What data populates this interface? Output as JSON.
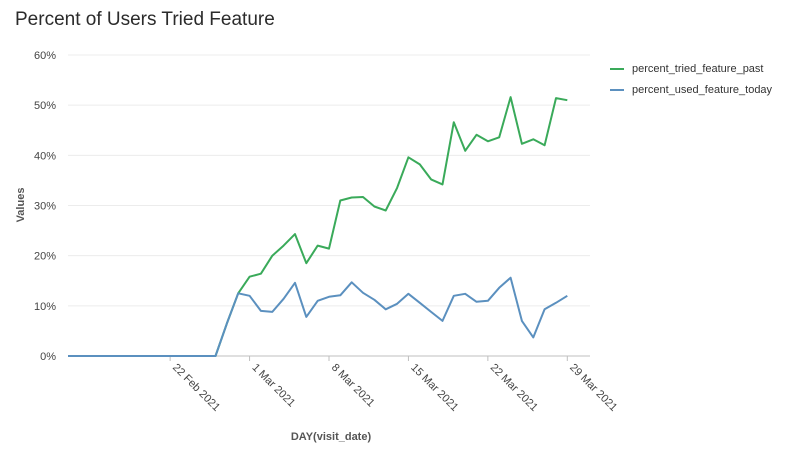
{
  "chart_data": {
    "type": "line",
    "title": "Percent of Users Tried Feature",
    "xlabel": "DAY(visit_date)",
    "ylabel": "Values",
    "ylim": [
      0,
      60
    ],
    "y_ticks": [
      "0%",
      "10%",
      "20%",
      "30%",
      "40%",
      "50%",
      "60%"
    ],
    "y_tick_values": [
      0,
      10,
      20,
      30,
      40,
      50,
      60
    ],
    "x_start_date": "2021-02-13",
    "x_end_date": "2021-03-31",
    "x_ticks": [
      {
        "label": "22 Feb 2021",
        "date": "2021-02-22"
      },
      {
        "label": "1 Mar 2021",
        "date": "2021-03-01"
      },
      {
        "label": "8 Mar 2021",
        "date": "2021-03-08"
      },
      {
        "label": "15 Mar 2021",
        "date": "2021-03-15"
      },
      {
        "label": "22 Mar 2021",
        "date": "2021-03-22"
      },
      {
        "label": "29 Mar 2021",
        "date": "2021-03-29"
      }
    ],
    "grid": true,
    "legend_position": "right",
    "series": [
      {
        "name": "percent_tried_feature_past",
        "color": "#3aaa5a",
        "points": [
          [
            "2021-02-13",
            0
          ],
          [
            "2021-02-14",
            0
          ],
          [
            "2021-02-15",
            0
          ],
          [
            "2021-02-16",
            0
          ],
          [
            "2021-02-17",
            0
          ],
          [
            "2021-02-18",
            0
          ],
          [
            "2021-02-19",
            0
          ],
          [
            "2021-02-20",
            0
          ],
          [
            "2021-02-21",
            0
          ],
          [
            "2021-02-22",
            0
          ],
          [
            "2021-02-23",
            0
          ],
          [
            "2021-02-24",
            0
          ],
          [
            "2021-02-25",
            0
          ],
          [
            "2021-02-26",
            0
          ],
          [
            "2021-02-27",
            6.5
          ],
          [
            "2021-02-28",
            12.5
          ],
          [
            "2021-03-01",
            15.8
          ],
          [
            "2021-03-02",
            16.4
          ],
          [
            "2021-03-03",
            20.0
          ],
          [
            "2021-03-04",
            22.0
          ],
          [
            "2021-03-05",
            24.3
          ],
          [
            "2021-03-06",
            18.5
          ],
          [
            "2021-03-07",
            22.0
          ],
          [
            "2021-03-08",
            21.4
          ],
          [
            "2021-03-09",
            31.0
          ],
          [
            "2021-03-10",
            31.6
          ],
          [
            "2021-03-11",
            31.7
          ],
          [
            "2021-03-12",
            29.8
          ],
          [
            "2021-03-13",
            29.0
          ],
          [
            "2021-03-14",
            33.5
          ],
          [
            "2021-03-15",
            39.6
          ],
          [
            "2021-03-16",
            38.2
          ],
          [
            "2021-03-17",
            35.2
          ],
          [
            "2021-03-18",
            34.2
          ],
          [
            "2021-03-19",
            46.6
          ],
          [
            "2021-03-20",
            40.9
          ],
          [
            "2021-03-21",
            44.1
          ],
          [
            "2021-03-22",
            42.8
          ],
          [
            "2021-03-23",
            43.6
          ],
          [
            "2021-03-24",
            51.6
          ],
          [
            "2021-03-25",
            42.3
          ],
          [
            "2021-03-26",
            43.2
          ],
          [
            "2021-03-27",
            42.0
          ],
          [
            "2021-03-28",
            51.4
          ],
          [
            "2021-03-29",
            51.0
          ]
        ]
      },
      {
        "name": "percent_used_feature_today",
        "color": "#5b90bf",
        "points": [
          [
            "2021-02-13",
            0
          ],
          [
            "2021-02-14",
            0
          ],
          [
            "2021-02-15",
            0
          ],
          [
            "2021-02-16",
            0
          ],
          [
            "2021-02-17",
            0
          ],
          [
            "2021-02-18",
            0
          ],
          [
            "2021-02-19",
            0
          ],
          [
            "2021-02-20",
            0
          ],
          [
            "2021-02-21",
            0
          ],
          [
            "2021-02-22",
            0
          ],
          [
            "2021-02-23",
            0
          ],
          [
            "2021-02-24",
            0
          ],
          [
            "2021-02-25",
            0
          ],
          [
            "2021-02-26",
            0
          ],
          [
            "2021-02-27",
            6.5
          ],
          [
            "2021-02-28",
            12.5
          ],
          [
            "2021-03-01",
            12.0
          ],
          [
            "2021-03-02",
            9.0
          ],
          [
            "2021-03-03",
            8.8
          ],
          [
            "2021-03-04",
            11.4
          ],
          [
            "2021-03-05",
            14.6
          ],
          [
            "2021-03-06",
            7.8
          ],
          [
            "2021-03-07",
            11.0
          ],
          [
            "2021-03-08",
            11.8
          ],
          [
            "2021-03-09",
            12.1
          ],
          [
            "2021-03-10",
            14.7
          ],
          [
            "2021-03-11",
            12.6
          ],
          [
            "2021-03-12",
            11.2
          ],
          [
            "2021-03-13",
            9.3
          ],
          [
            "2021-03-14",
            10.4
          ],
          [
            "2021-03-15",
            12.4
          ],
          [
            "2021-03-16",
            10.6
          ],
          [
            "2021-03-17",
            8.8
          ],
          [
            "2021-03-18",
            7.0
          ],
          [
            "2021-03-19",
            12.0
          ],
          [
            "2021-03-20",
            12.4
          ],
          [
            "2021-03-21",
            10.8
          ],
          [
            "2021-03-22",
            11.0
          ],
          [
            "2021-03-23",
            13.6
          ],
          [
            "2021-03-24",
            15.6
          ],
          [
            "2021-03-25",
            7.0
          ],
          [
            "2021-03-26",
            3.7
          ],
          [
            "2021-03-27",
            9.3
          ],
          [
            "2021-03-28",
            10.6
          ],
          [
            "2021-03-29",
            12.0
          ]
        ]
      }
    ]
  }
}
